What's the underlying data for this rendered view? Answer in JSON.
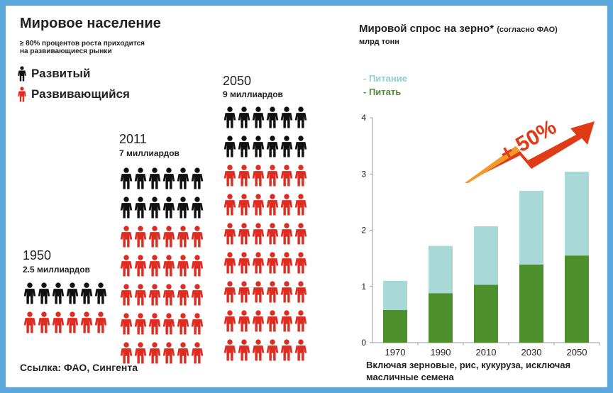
{
  "population": {
    "title": "Мировое население",
    "subtitle_line1": "≥ 80% процентов роста приходится",
    "subtitle_line2": "на развивающиеся рынки",
    "legend_developed": "Развитый",
    "legend_developing": "Развивающийся",
    "source": "Ссылка: ФАО, Сингента",
    "colors": {
      "developed": "#111111",
      "developing": "#e02b20"
    },
    "groups": [
      {
        "year": "1950",
        "amount": "2.5 миллиардов",
        "black_rows": 1,
        "red_rows": 1,
        "per_row": 6
      },
      {
        "year": "2011",
        "amount": "7 миллиардов",
        "black_rows": 2,
        "red_rows": 5,
        "per_row": 6
      },
      {
        "year": "2050",
        "amount": "9 миллиардов",
        "black_rows": 2,
        "red_rows": 7,
        "per_row": 6
      }
    ]
  },
  "demand": {
    "title_main": "Мировой спрос на зерно*",
    "title_small": "(согласно ФАО)",
    "unit": "млрд тонн",
    "legend_food": "- Питание",
    "legend_feed": "- Питать",
    "arrow_label": "+ 50%",
    "note_line1": "Включая зерновые, рис, кукуруза, исключая",
    "note_line2": "масличные семена",
    "colors": {
      "food": "#a9d9d6",
      "feed": "#4d8f2b",
      "arrow": "#e03a17"
    }
  },
  "chart_data": {
    "type": "bar",
    "stacked": true,
    "categories": [
      "1970",
      "1990",
      "2010",
      "2030",
      "2050"
    ],
    "series": [
      {
        "name": "- Питать",
        "values": [
          0.58,
          0.88,
          1.03,
          1.39,
          1.55
        ]
      },
      {
        "name": "- Питание",
        "values": [
          0.52,
          0.84,
          1.04,
          1.31,
          1.49
        ]
      }
    ],
    "ylim": [
      0,
      4
    ],
    "yticks": [
      "0",
      "1",
      "2",
      "3",
      "4"
    ],
    "grid": false,
    "legend": "top-left"
  }
}
